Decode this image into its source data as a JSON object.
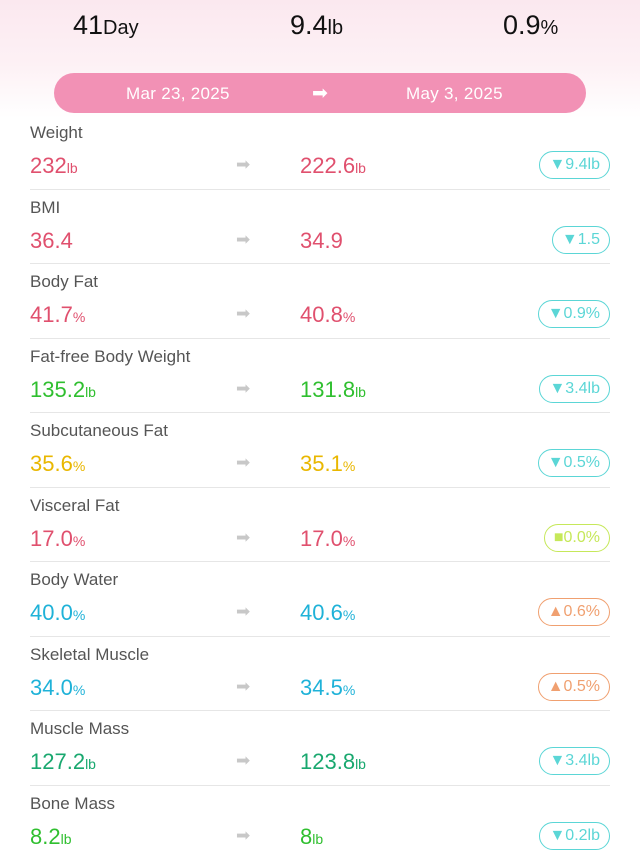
{
  "summary": {
    "days": {
      "value": "41",
      "unit": "Day"
    },
    "weight_change": {
      "value": "9.4",
      "unit": "lb"
    },
    "percent_change": {
      "value": "0.9",
      "unit": "%"
    }
  },
  "date_range": {
    "start": "Mar 23, 2025",
    "arrow": "➡",
    "end": "May 3, 2025"
  },
  "colors": {
    "red": "#e0506e",
    "green": "#2fbf2f",
    "yellow": "#e9b700",
    "blue": "#1fb2d8",
    "teal": "#19a86f",
    "badge_down": "#5bd6d6",
    "badge_flat": "#c6e85a",
    "badge_up": "#f0a070"
  },
  "metrics": [
    {
      "label": "Weight",
      "from": "232",
      "from_unit": "lb",
      "to": "222.6",
      "to_unit": "lb",
      "change": "▼9.4lb",
      "color": "#e0506e",
      "badge_color": "#5bd6d6"
    },
    {
      "label": "BMI",
      "from": "36.4",
      "from_unit": "",
      "to": "34.9",
      "to_unit": "",
      "change": "▼1.5",
      "color": "#e0506e",
      "badge_color": "#5bd6d6"
    },
    {
      "label": "Body Fat",
      "from": "41.7",
      "from_unit": "%",
      "to": "40.8",
      "to_unit": "%",
      "change": "▼0.9%",
      "color": "#e0506e",
      "badge_color": "#5bd6d6"
    },
    {
      "label": "Fat-free Body Weight",
      "from": "135.2",
      "from_unit": "lb",
      "to": "131.8",
      "to_unit": "lb",
      "change": "▼3.4lb",
      "color": "#2fbf2f",
      "badge_color": "#5bd6d6"
    },
    {
      "label": "Subcutaneous Fat",
      "from": "35.6",
      "from_unit": "%",
      "to": "35.1",
      "to_unit": "%",
      "change": "▼0.5%",
      "color": "#e9b700",
      "badge_color": "#5bd6d6"
    },
    {
      "label": "Visceral Fat",
      "from": "17.0",
      "from_unit": "%",
      "to": "17.0",
      "to_unit": "%",
      "change": "■0.0%",
      "color": "#e0506e",
      "badge_color": "#c6e85a"
    },
    {
      "label": "Body Water",
      "from": "40.0",
      "from_unit": "%",
      "to": "40.6",
      "to_unit": "%",
      "change": "▲0.6%",
      "color": "#1fb2d8",
      "badge_color": "#f0a070"
    },
    {
      "label": "Skeletal Muscle",
      "from": "34.0",
      "from_unit": "%",
      "to": "34.5",
      "to_unit": "%",
      "change": "▲0.5%",
      "color": "#1fb2d8",
      "badge_color": "#f0a070"
    },
    {
      "label": "Muscle Mass",
      "from": "127.2",
      "from_unit": "lb",
      "to": "123.8",
      "to_unit": "lb",
      "change": "▼3.4lb",
      "color": "#19a86f",
      "badge_color": "#5bd6d6"
    },
    {
      "label": "Bone Mass",
      "from": "8.2",
      "from_unit": "lb",
      "to": "8",
      "to_unit": "lb",
      "change": "▼0.2lb",
      "color": "#2fbf2f",
      "badge_color": "#5bd6d6"
    }
  ]
}
